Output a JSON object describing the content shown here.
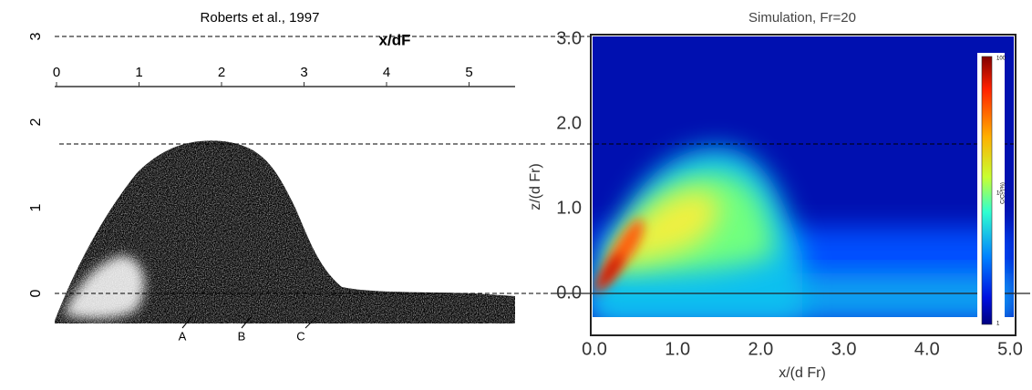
{
  "left_panel": {
    "title": "Roberts et al., 1997",
    "x_axis_label": "x/dF",
    "x_ticks": [
      "0",
      "1",
      "2",
      "3",
      "4",
      "5"
    ],
    "y_ticks": [
      "3",
      "2",
      "1",
      "0"
    ],
    "markers": [
      "A",
      "B",
      "C"
    ]
  },
  "right_panel": {
    "title": "Simulation, Fr=20",
    "x_axis_label": "x/(d Fr)",
    "y_axis_label": "z/(d Fr)",
    "x_ticks": [
      "0.0",
      "1.0",
      "2.0",
      "3.0",
      "4.0",
      "5.0"
    ],
    "y_ticks": [
      "3.0",
      "2.0",
      "1.0",
      "0.0"
    ],
    "colorbar": {
      "label": "C/C₀ (%)",
      "ticks": [
        "100",
        "10",
        "1"
      ]
    }
  }
}
